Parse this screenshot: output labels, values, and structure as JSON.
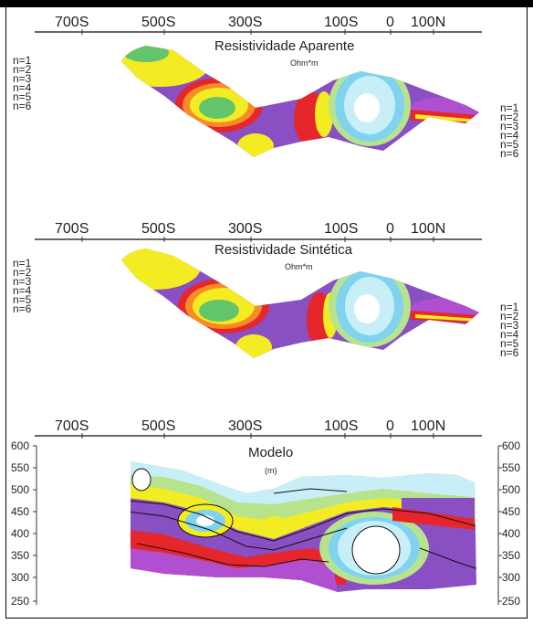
{
  "panels": [
    {
      "id": "apparent",
      "axis_labels": [
        "700S",
        "500S",
        "300S",
        "100S",
        "0",
        "100N"
      ],
      "title": "Resistividade Aparente",
      "unit": "Ohm*m",
      "left_levels": [
        "n=1",
        "n=2",
        "n=3",
        "n=4",
        "n=5",
        "n=6"
      ],
      "right_levels": [
        "n=1",
        "n=2",
        "n=3",
        "n=4",
        "n=5",
        "n=6"
      ]
    },
    {
      "id": "synthetic",
      "axis_labels": [
        "700S",
        "500S",
        "300S",
        "100S",
        "0",
        "100N"
      ],
      "title": "Resistividade Sintética",
      "unit": "Ohm*m",
      "left_levels": [
        "n=1",
        "n=2",
        "n=3",
        "n=4",
        "n=5",
        "n=6"
      ],
      "right_levels": [
        "n=1",
        "n=2",
        "n=3",
        "n=4",
        "n=5",
        "n=6"
      ]
    },
    {
      "id": "model",
      "axis_labels": [
        "700S",
        "500S",
        "300S",
        "100S",
        "0",
        "100N"
      ],
      "title": "Modelo",
      "unit": "(m)",
      "depth_ticks": [
        "600",
        "550",
        "500",
        "450",
        "400",
        "350",
        "300",
        "250"
      ]
    }
  ],
  "colors": {
    "violet": "#8a4fc2",
    "purple": "#b04fd0",
    "red": "#e5262b",
    "orange": "#f58c25",
    "yellow": "#f4ec22",
    "green": "#62c46b",
    "lightgreen": "#b7e38c",
    "cyan": "#7fd3ef",
    "lightcyan": "#c8eef8",
    "white": "#ffffff"
  }
}
